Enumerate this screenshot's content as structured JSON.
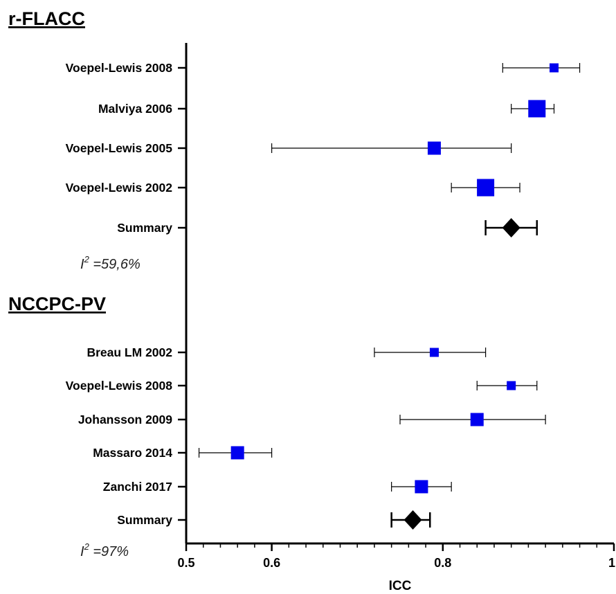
{
  "chart_data": {
    "type": "forest",
    "xlabel": "ICC",
    "xlim": [
      0.5,
      1.0
    ],
    "xticks": [
      {
        "value": 0.5,
        "label": "0.5"
      },
      {
        "value": 0.6,
        "label": "0.6"
      },
      {
        "value": 0.8,
        "label": "0.8"
      },
      {
        "value": 1.0,
        "label": "1"
      }
    ],
    "colors": {
      "study": "#0000ee",
      "summary": "#000000",
      "line": "#000000"
    },
    "groups": [
      {
        "name": "r-FLACC",
        "heterogeneity": {
          "prefix": "I",
          "sup": "2",
          "text": " =59,6%"
        },
        "studies": [
          {
            "label": "Voepel-Lewis 2008",
            "icc": 0.93,
            "lower": 0.87,
            "upper": 0.96,
            "weight": "small"
          },
          {
            "label": "Malviya 2006",
            "icc": 0.91,
            "lower": 0.88,
            "upper": 0.93,
            "weight": "large"
          },
          {
            "label": "Voepel-Lewis 2005",
            "icc": 0.79,
            "lower": 0.6,
            "upper": 0.88,
            "weight": "medium"
          },
          {
            "label": "Voepel-Lewis 2002",
            "icc": 0.85,
            "lower": 0.81,
            "upper": 0.89,
            "weight": "large"
          }
        ],
        "summary": {
          "label": "Summary",
          "icc": 0.88,
          "lower": 0.85,
          "upper": 0.91
        }
      },
      {
        "name": "NCCPC-PV",
        "heterogeneity": {
          "prefix": "I",
          "sup": "2",
          "text": " =97%"
        },
        "studies": [
          {
            "label": "Breau LM 2002",
            "icc": 0.79,
            "lower": 0.72,
            "upper": 0.85,
            "weight": "small"
          },
          {
            "label": "Voepel-Lewis 2008",
            "icc": 0.88,
            "lower": 0.84,
            "upper": 0.91,
            "weight": "small"
          },
          {
            "label": "Johansson 2009",
            "icc": 0.84,
            "lower": 0.75,
            "upper": 0.92,
            "weight": "medium"
          },
          {
            "label": "Massaro 2014",
            "icc": 0.56,
            "lower": 0.515,
            "upper": 0.6,
            "weight": "medium"
          },
          {
            "label": "Zanchi 2017",
            "icc": 0.775,
            "lower": 0.74,
            "upper": 0.81,
            "weight": "medium"
          }
        ],
        "summary": {
          "label": "Summary",
          "icc": 0.765,
          "lower": 0.74,
          "upper": 0.785
        }
      }
    ]
  }
}
